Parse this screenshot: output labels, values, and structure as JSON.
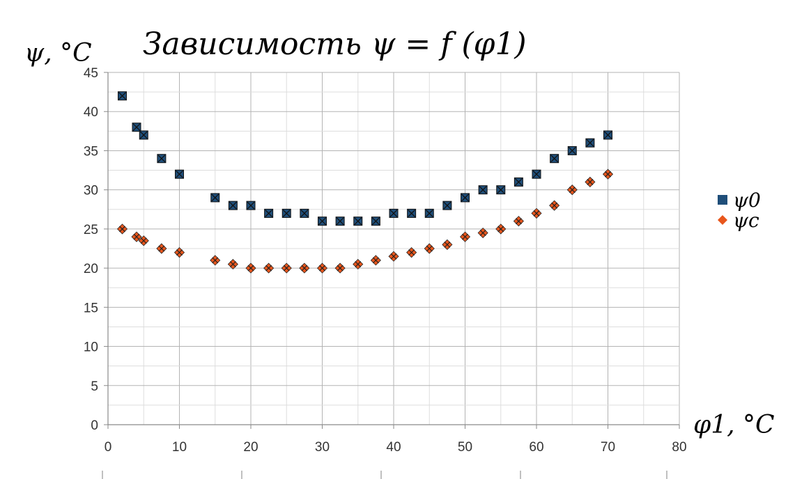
{
  "chart_data": {
    "type": "scatter",
    "title": "Зависимость ψ = f (φ1)",
    "xlabel": "φ1, °C",
    "ylabel": "ψ, °C",
    "xlim": [
      0,
      80
    ],
    "ylim": [
      0,
      45
    ],
    "x_ticks": [
      "0",
      "10",
      "20",
      "30",
      "40",
      "50",
      "60",
      "70",
      "80"
    ],
    "y_ticks": [
      "0",
      "5",
      "10",
      "15",
      "20",
      "25",
      "30",
      "35",
      "40",
      "45"
    ],
    "grid": true,
    "legend_position": "right",
    "series": [
      {
        "name": "ψ0",
        "color": "#1f4e79",
        "marker": "square",
        "points": [
          [
            2,
            42
          ],
          [
            4,
            38
          ],
          [
            5,
            37
          ],
          [
            7.5,
            34
          ],
          [
            10,
            32
          ],
          [
            15,
            29
          ],
          [
            17.5,
            28
          ],
          [
            20,
            28
          ],
          [
            22.5,
            27
          ],
          [
            25,
            27
          ],
          [
            27.5,
            27
          ],
          [
            30,
            26
          ],
          [
            32.5,
            26
          ],
          [
            35,
            26
          ],
          [
            37.5,
            26
          ],
          [
            40,
            27
          ],
          [
            42.5,
            27
          ],
          [
            45,
            27
          ],
          [
            47.5,
            28
          ],
          [
            50,
            29
          ],
          [
            52.5,
            30
          ],
          [
            55,
            30
          ],
          [
            57.5,
            31
          ],
          [
            60,
            32
          ],
          [
            62.5,
            34
          ],
          [
            65,
            35
          ],
          [
            67.5,
            36
          ],
          [
            70,
            37
          ]
        ]
      },
      {
        "name": "ψc",
        "color": "#e8561c",
        "marker": "diamond",
        "points": [
          [
            2,
            25
          ],
          [
            4,
            24
          ],
          [
            5,
            23.5
          ],
          [
            7.5,
            22.5
          ],
          [
            10,
            22
          ],
          [
            15,
            21
          ],
          [
            17.5,
            20.5
          ],
          [
            20,
            20
          ],
          [
            22.5,
            20
          ],
          [
            25,
            20
          ],
          [
            27.5,
            20
          ],
          [
            30,
            20
          ],
          [
            32.5,
            20
          ],
          [
            35,
            20.5
          ],
          [
            37.5,
            21
          ],
          [
            40,
            21.5
          ],
          [
            42.5,
            22
          ],
          [
            45,
            22.5
          ],
          [
            47.5,
            23
          ],
          [
            50,
            24
          ],
          [
            52.5,
            24.5
          ],
          [
            55,
            25
          ],
          [
            57.5,
            26
          ],
          [
            60,
            27
          ],
          [
            62.5,
            28
          ],
          [
            65,
            30
          ],
          [
            67.5,
            31
          ],
          [
            70,
            32
          ]
        ]
      }
    ]
  }
}
